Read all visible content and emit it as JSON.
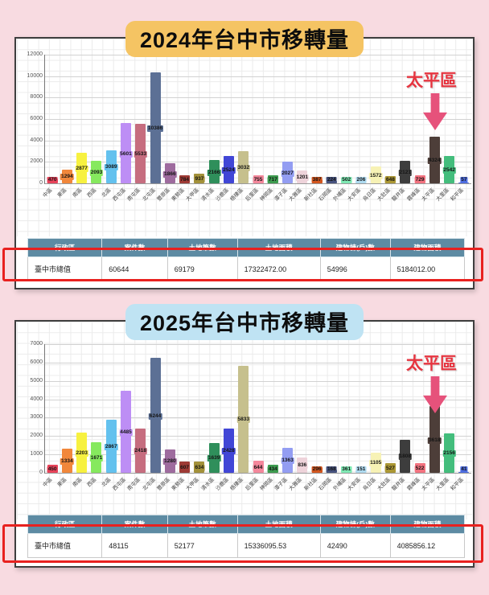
{
  "canvas": {
    "background": "#f8dbe1",
    "red_box_color": "#e8211f"
  },
  "styles": {
    "title_highlights": [
      "#f5c463",
      "#bfe3f3"
    ],
    "annotation_text_color": "#e63540",
    "arrow_color": "#e6527b",
    "table_header_bg": "#5d8ba3"
  },
  "bar_colors": [
    "#e8435a",
    "#f1873b",
    "#f7f13f",
    "#86e95e",
    "#63c1ee",
    "#bd8ef5",
    "#c66d7f",
    "#5c7095",
    "#9e6b9e",
    "#9e3a35",
    "#a3913a",
    "#2f8f5b",
    "#4146d6",
    "#c6c08d",
    "#f4879b",
    "#3d9b4f",
    "#939df2",
    "#eed3da",
    "#d2561f",
    "#46527e",
    "#7fe9b4",
    "#aedaf0",
    "#f7f2b5",
    "#ab9734",
    "#3d3d3d",
    "#f2727f",
    "#4d3e39",
    "#43bd7c",
    "#4d6ce0"
  ],
  "chart_data": [
    {
      "type": "bar",
      "title": "2024年台中市移轉量",
      "categories": [
        "中區",
        "東區",
        "南區",
        "西區",
        "北區",
        "西屯區",
        "南屯區",
        "北屯區",
        "豐原區",
        "東勢區",
        "大甲區",
        "清水區",
        "沙鹿區",
        "梧棲區",
        "后里區",
        "神岡區",
        "潭子區",
        "大雅區",
        "新社區",
        "石岡區",
        "外埔區",
        "大安區",
        "烏日區",
        "大肚區",
        "龍井區",
        "霧峰區",
        "太平區",
        "大里區",
        "和平區"
      ],
      "values": [
        470,
        1294,
        2877,
        2093,
        3089,
        5601,
        5533,
        10386,
        1866,
        784,
        937,
        2166,
        2524,
        3032,
        755,
        717,
        2027,
        1201,
        387,
        224,
        502,
        206,
        1572,
        648,
        2121,
        729,
        4324,
        2542,
        57
      ],
      "xlabel": "",
      "ylabel": "",
      "ylim": [
        0,
        12000
      ],
      "y_ticks": [
        0,
        2000,
        4000,
        6000,
        8000,
        10000,
        12000
      ],
      "grid": true,
      "annotation": "太平區",
      "annotation_target": "太平區"
    },
    {
      "type": "bar",
      "title": "2025年台中市移轉量",
      "categories": [
        "中區",
        "東區",
        "南區",
        "西區",
        "北區",
        "西屯區",
        "南屯區",
        "北屯區",
        "豐原區",
        "東勢區",
        "大甲區",
        "清水區",
        "沙鹿區",
        "梧棲區",
        "后里區",
        "神岡區",
        "潭子區",
        "大雅區",
        "新社區",
        "石岡區",
        "外埔區",
        "大安區",
        "烏日區",
        "大肚區",
        "龍井區",
        "霧峰區",
        "太平區",
        "大里區",
        "和平區"
      ],
      "values": [
        450,
        1334,
        2203,
        1671,
        2867,
        4485,
        2418,
        6244,
        1280,
        607,
        634,
        1639,
        2428,
        5833,
        644,
        434,
        1363,
        836,
        296,
        168,
        361,
        151,
        1105,
        527,
        1808,
        522,
        3618,
        2156,
        41
      ],
      "xlabel": "",
      "ylabel": "",
      "ylim": [
        0,
        7000
      ],
      "y_ticks": [
        0,
        1000,
        2000,
        3000,
        4000,
        5000,
        6000,
        7000
      ],
      "grid": true,
      "annotation": "太平區",
      "annotation_target": "太平區"
    }
  ],
  "tables": [
    {
      "headers": [
        "行政區",
        "案件數",
        "土地筆數",
        "土地面積",
        "建物棟(戶)數",
        "建物面積"
      ],
      "rows": [
        [
          "臺中市總值",
          "60644",
          "69179",
          "17322472.00",
          "54996",
          "5184012.00"
        ]
      ]
    },
    {
      "headers": [
        "行政區",
        "案件數",
        "土地筆數",
        "土地面積",
        "建物棟(戶)數",
        "建物面積"
      ],
      "rows": [
        [
          "臺中市總值",
          "48115",
          "52177",
          "15336095.53",
          "42490",
          "4085856.12"
        ]
      ]
    }
  ]
}
